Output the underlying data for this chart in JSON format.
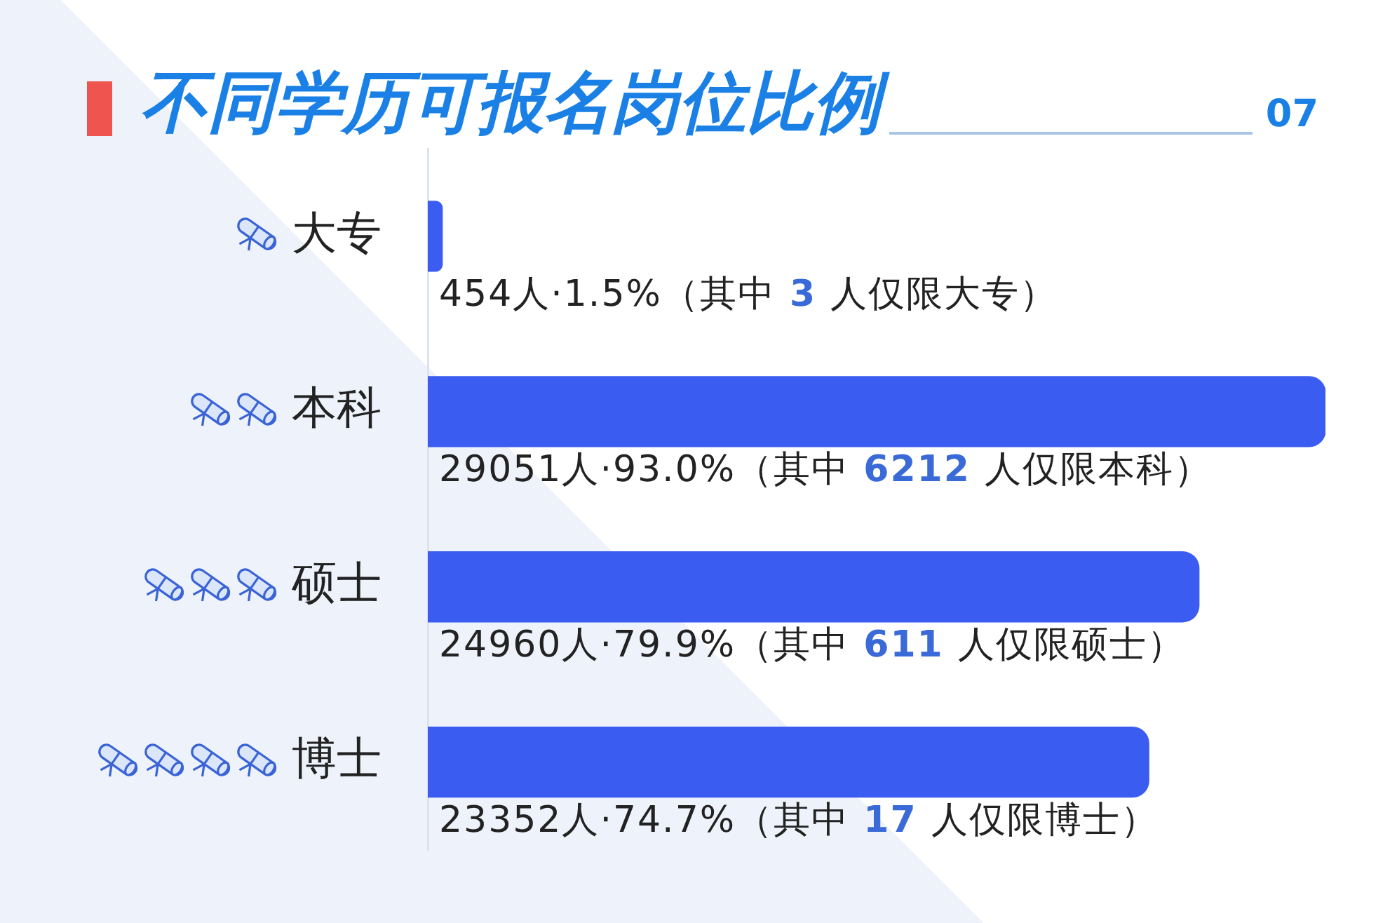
{
  "chart_data": {
    "type": "bar",
    "orientation": "horizontal",
    "title": "不同学历可报名岗位比例",
    "categories": [
      "大专",
      "本科",
      "硕士",
      "博士"
    ],
    "values": [
      1.5,
      93.0,
      79.9,
      74.7
    ],
    "color": "#3a5cf0",
    "value_labels": [
      "454人·1.5%（其中 3 人仅限大专）",
      "29051人·93.0%（其中 6212 人仅限本科）",
      "24960人·79.9%（其中 611 人仅限硕士）",
      "23352人·74.7%（其中 17 人仅限博士）"
    ],
    "tick_labels": "y",
    "annotations": [
      "07"
    ]
  }
}
